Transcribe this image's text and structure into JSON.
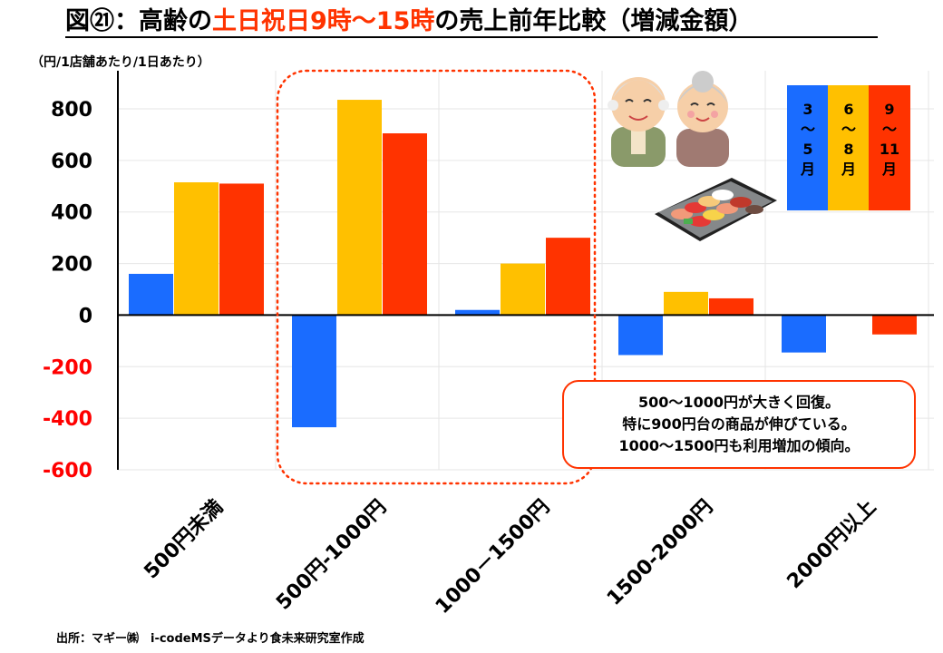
{
  "title": {
    "part1": "図㉑：高齢の",
    "highlight": "土日祝日9時～15時",
    "part2": "の売上前年比較（増減金額）"
  },
  "unit_label": "（円/1店舗あたり/1日あたり）",
  "source": "出所：マギー㈱　i-codeMSデータより食未来研究室作成",
  "callout": {
    "lines": [
      "500～1000円が大きく回復。",
      "特に900円台の商品が伸びている。",
      "1000～1500円も利用増加の傾向。"
    ]
  },
  "colors": {
    "blue": "#1a6cff",
    "yellow": "#ffc000",
    "red": "#ff3300",
    "highlight_box": "#ff3300"
  },
  "chart_data": {
    "type": "bar",
    "categories": [
      "500円未満",
      "500円-1000円",
      "1000－1500円",
      "1500-2000円",
      "2000円以上"
    ],
    "series": [
      {
        "name": "3～5月",
        "color": "#1a6cff",
        "values": [
          160,
          -435,
          20,
          -155,
          -145
        ]
      },
      {
        "name": "6～8月",
        "color": "#ffc000",
        "values": [
          515,
          835,
          200,
          90,
          0
        ]
      },
      {
        "name": "9～11月",
        "color": "#ff3300",
        "values": [
          510,
          705,
          300,
          65,
          -75
        ]
      }
    ],
    "ylim": [
      -600,
      800
    ],
    "yticks": [
      800,
      600,
      400,
      200,
      0,
      -200,
      -400,
      -600
    ],
    "legend": [
      {
        "label": [
          "3",
          "～",
          "5",
          "月"
        ],
        "color": "#1a6cff"
      },
      {
        "label": [
          "6",
          "～",
          "8",
          "月"
        ],
        "color": "#ffc000"
      },
      {
        "label": [
          "9",
          "～",
          "11",
          "月"
        ],
        "color": "#ff3300"
      }
    ]
  }
}
